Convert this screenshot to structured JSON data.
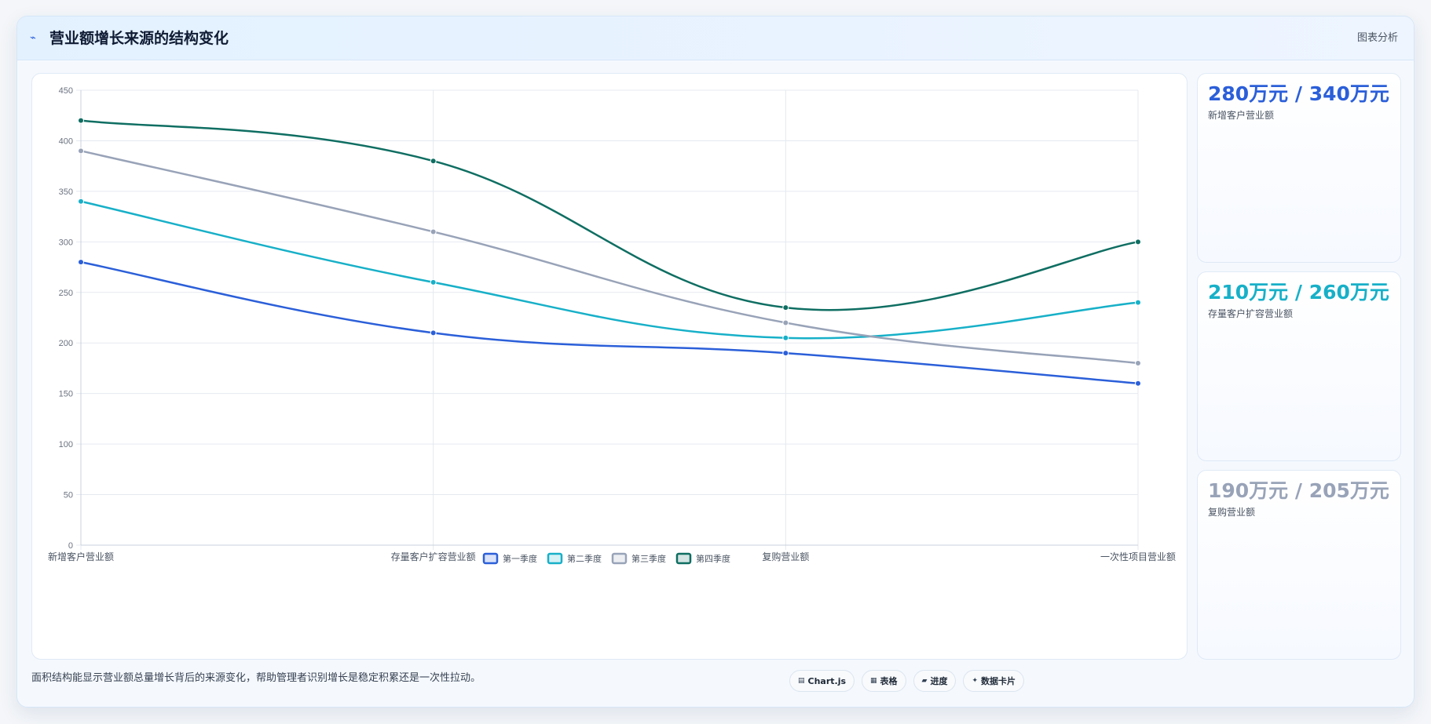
{
  "header": {
    "icon": "trend-icon",
    "icon_glyph": "⌁",
    "title": "营业额增长来源的结构变化",
    "action": "图表分析"
  },
  "chart_data": {
    "type": "line",
    "categories": [
      "新增客户营业额",
      "存量客户扩容营业额",
      "复购营业额",
      "一次性项目营业额"
    ],
    "series": [
      {
        "name": "第一季度",
        "values": [
          280,
          210,
          190,
          160
        ],
        "color": "#2b5fd9"
      },
      {
        "name": "第二季度",
        "values": [
          340,
          260,
          205,
          240
        ],
        "color": "#17b0c8"
      },
      {
        "name": "第三季度",
        "values": [
          390,
          310,
          220,
          180
        ],
        "color": "#98a3b8"
      },
      {
        "name": "第四季度",
        "values": [
          420,
          380,
          235,
          300
        ],
        "color": "#0f6e62"
      }
    ],
    "ylim": [
      0,
      450
    ],
    "yticks": [
      "0",
      "50",
      "100",
      "150",
      "200",
      "250",
      "300",
      "350",
      "400",
      "450"
    ],
    "grid": true,
    "legend": "bottom"
  },
  "kpis": [
    {
      "value": "280万元 / 340万元",
      "label": "新增客户营业额",
      "color": "#2b5fd9"
    },
    {
      "value": "210万元 / 260万元",
      "label": "存量客户扩容营业额",
      "color": "#17b0c8"
    },
    {
      "value": "190万元 / 205万元",
      "label": "复购营业额",
      "color": "#98a3b8"
    }
  ],
  "footer": {
    "text": "面积结构能显示营业额总量增长背后的来源变化，帮助管理者识别增长是稳定积累还是一次性拉动。",
    "chips": [
      {
        "icon": "chart-icon",
        "glyph": "▤",
        "label": "Chart.js"
      },
      {
        "icon": "table-icon",
        "glyph": "▦",
        "label": "表格"
      },
      {
        "icon": "progress-icon",
        "glyph": "▰",
        "label": "进度"
      },
      {
        "icon": "card-icon",
        "glyph": "✦",
        "label": "数据卡片"
      }
    ]
  }
}
